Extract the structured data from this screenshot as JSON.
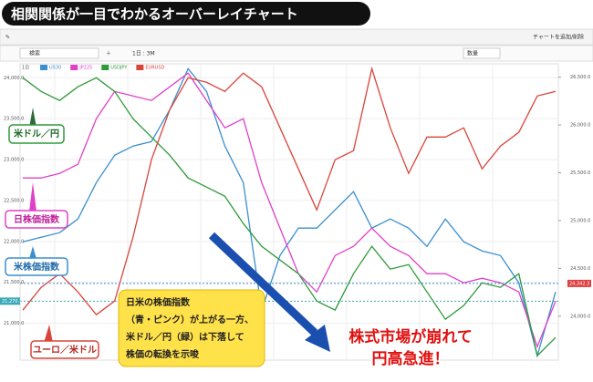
{
  "header": {
    "title": "相関関係が一目でわかるオーバーレイチャート"
  },
  "toolbar": {
    "add_remove": "チャートを追加/削除",
    "search": "検索",
    "period": "1日 : 3M",
    "quantity": "数量"
  },
  "chart_data": {
    "type": "line",
    "interval": "1日",
    "ylim": [
      20550,
      24170
    ],
    "yticks": [
      {
        "value": 21000,
        "label": "21,000.0"
      },
      {
        "value": 21500,
        "label": "21,500.0"
      },
      {
        "value": 22000,
        "label": "22,000.0"
      },
      {
        "value": 22500,
        "label": "22,500.0"
      },
      {
        "value": 23000,
        "label": "23,000.0"
      },
      {
        "value": 23500,
        "label": "23,500.0"
      },
      {
        "value": 24000,
        "label": "24,000.0"
      }
    ],
    "y2lim": [
      23540,
      26640
    ],
    "y2ticks": [
      {
        "value": 24000,
        "label": "24,000.0"
      },
      {
        "value": 24500,
        "label": "24,500.0"
      },
      {
        "value": 25000,
        "label": "25,000.0"
      },
      {
        "value": 25500,
        "label": "25,500.0"
      },
      {
        "value": 26000,
        "label": "26,000.0"
      },
      {
        "value": 26500,
        "label": "26,500.0"
      }
    ],
    "grid": true,
    "current_left": {
      "value": 21270.2,
      "label": "21,270.2"
    },
    "current_right": {
      "value": 24342.3,
      "label": "24,342.3"
    },
    "series": [
      {
        "name": "US30",
        "color": "#3a8fd0",
        "values": [
          21996,
          22051,
          22107,
          22274,
          22719,
          23053,
          23165,
          23220,
          23610,
          24111,
          23833,
          23165,
          22719,
          21160,
          21828,
          22163,
          22163,
          22385,
          22608,
          22163,
          22274,
          22163,
          21940,
          22274,
          21996,
          21884,
          21828,
          21494,
          20604,
          21383
        ]
      },
      {
        "name": "JP225",
        "color": "#e040c8",
        "values": [
          22775,
          22775,
          22831,
          22942,
          23499,
          23833,
          23777,
          23722,
          23889,
          24056,
          23722,
          23388,
          23499,
          22719,
          22163,
          21606,
          21383,
          21828,
          21940,
          22163,
          21940,
          21828,
          21606,
          21606,
          21494,
          21550,
          21494,
          21383,
          20715,
          21272
        ]
      },
      {
        "name": "USDJPY",
        "color": "#2e9a3a",
        "values": [
          24000,
          23833,
          23722,
          23889,
          24000,
          23833,
          23499,
          23276,
          23053,
          22775,
          22664,
          22552,
          22218,
          21940,
          21773,
          21606,
          21272,
          21161,
          21606,
          21940,
          21662,
          21717,
          21383,
          21049,
          21216,
          21494,
          21439,
          21606,
          20604,
          20826
        ]
      },
      {
        "name": "EURUSD",
        "color": "#d9453a",
        "values": [
          21160,
          21439,
          21606,
          21383,
          21105,
          21272,
          22051,
          22998,
          23610,
          24000,
          23944,
          23833,
          24056,
          23889,
          23388,
          22886,
          22385,
          22998,
          23109,
          24111,
          23388,
          22831,
          23276,
          23276,
          23388,
          22886,
          23165,
          23332,
          23777,
          23833
        ]
      }
    ]
  },
  "callouts": {
    "usdjpy": "米ドル／円",
    "jp225": "日株価指数",
    "us30": "米株価指数",
    "eurusd": "ユーロ／米ドル",
    "note": [
      "日米の株価指数",
      "（青・ピンク）が上がる一方、",
      "米ドル／円（緑）は下落して",
      "株価の転換を示唆"
    ],
    "headline": [
      "株式市場が崩れて",
      "円高急進！"
    ]
  }
}
